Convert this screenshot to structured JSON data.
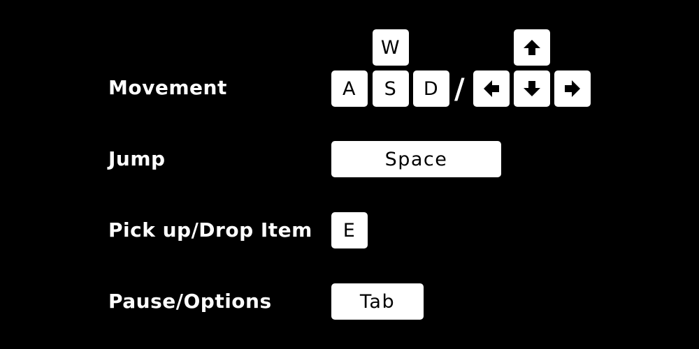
{
  "controls": {
    "movement": {
      "label": "Movement",
      "keys": {
        "w": "W",
        "a": "A",
        "s": "S",
        "d": "D"
      },
      "separator": "/",
      "arrow_icons": [
        "arrow-up-icon",
        "arrow-left-icon",
        "arrow-down-icon",
        "arrow-right-icon"
      ]
    },
    "jump": {
      "label": "Jump",
      "key": "Space"
    },
    "pickup": {
      "label": "Pick up/Drop Item",
      "key": "E"
    },
    "pause": {
      "label": "Pause/Options",
      "key": "Tab"
    }
  },
  "colors": {
    "background": "#000000",
    "key_face": "#ffffff",
    "key_text": "#000000",
    "label_text": "#ffffff"
  }
}
